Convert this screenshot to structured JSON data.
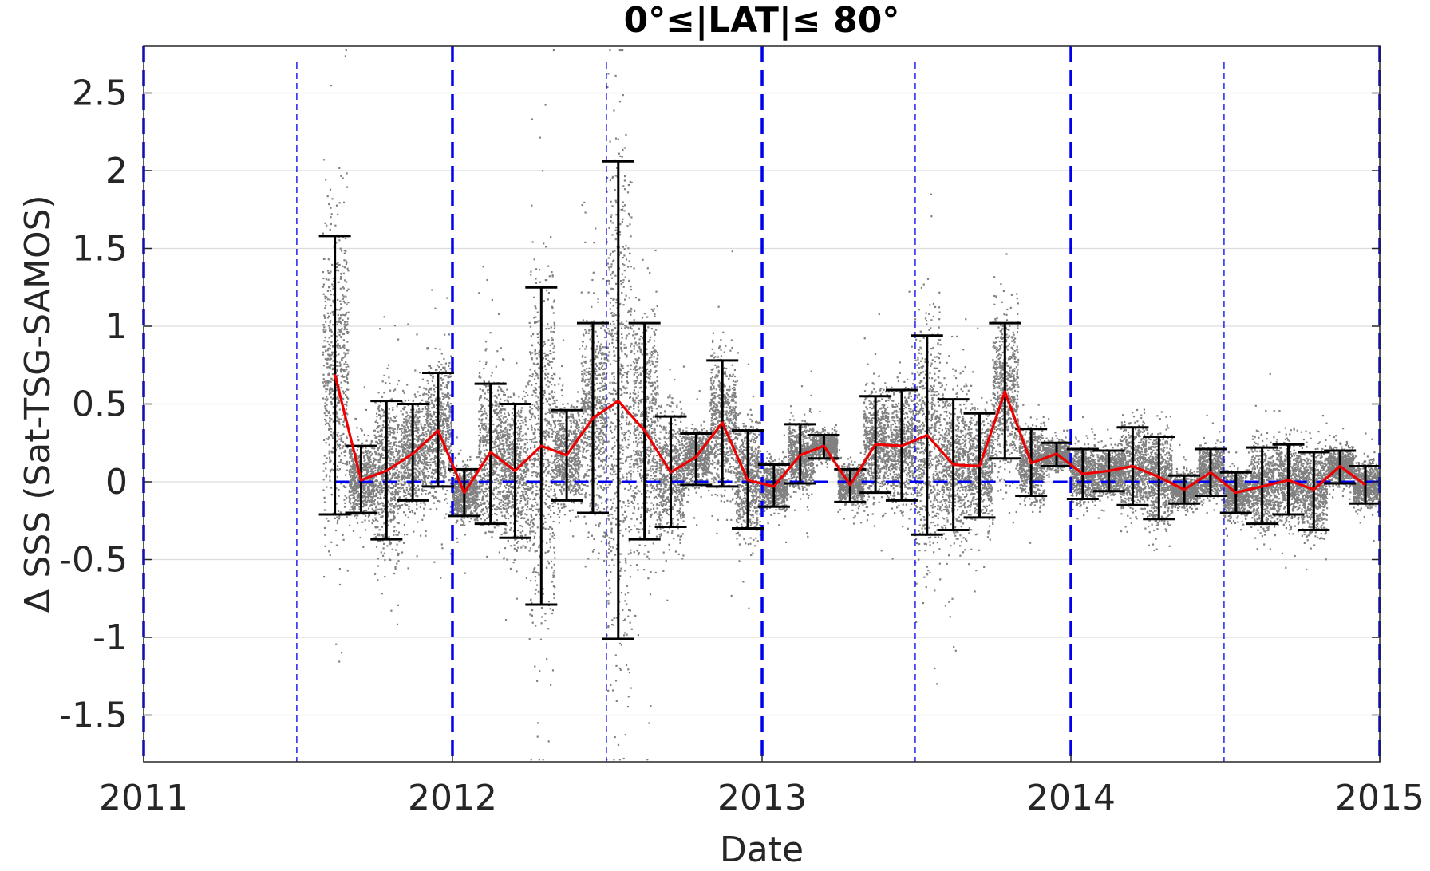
{
  "chart_data": {
    "type": "scatter",
    "title": "0°≤|LAT|≤ 80°",
    "xlabel": "Date",
    "ylabel": "Δ SSS (Sat-TSG-SAMOS)",
    "xlim": [
      "2011-01-01",
      "2015-01-01"
    ],
    "ylim": [
      -1.8,
      2.8
    ],
    "xticks": [
      "2011",
      "2012",
      "2013",
      "2014",
      "2015"
    ],
    "yticks": [
      "2.5",
      "2",
      "1.5",
      "1",
      "0.5",
      "0",
      "-0.5",
      "-1",
      "-1.5"
    ],
    "grid": true,
    "reference_line": {
      "y": 0,
      "style": "dashed",
      "color": "#0000ee"
    },
    "year_lines": {
      "dates": [
        "2011-01-01",
        "2012-01-01",
        "2013-01-01",
        "2014-01-01",
        "2015-01-01"
      ],
      "style": "dashed",
      "color": "#0000ee"
    },
    "half_year_lines": {
      "dates": [
        "2011-07-01",
        "2012-07-01",
        "2013-07-01",
        "2014-07-01"
      ],
      "style": "dashed",
      "color": "#0000ee"
    },
    "colors": {
      "points": "#808080",
      "mean_line": "#ee0000",
      "error_bars": "#000000",
      "reference": "#0000ee"
    },
    "monthly_mean": [
      {
        "date": "2011-08-15",
        "mean": 0.69,
        "low": -0.21,
        "high": 1.58
      },
      {
        "date": "2011-09-15",
        "mean": 0.01,
        "low": -0.2,
        "high": 0.23
      },
      {
        "date": "2011-10-15",
        "mean": 0.07,
        "low": -0.37,
        "high": 0.52
      },
      {
        "date": "2011-11-15",
        "mean": 0.18,
        "low": -0.12,
        "high": 0.5
      },
      {
        "date": "2011-12-15",
        "mean": 0.33,
        "low": -0.03,
        "high": 0.7
      },
      {
        "date": "2012-01-15",
        "mean": -0.07,
        "low": -0.22,
        "high": 0.08
      },
      {
        "date": "2012-02-15",
        "mean": 0.19,
        "low": -0.27,
        "high": 0.63
      },
      {
        "date": "2012-03-15",
        "mean": 0.07,
        "low": -0.36,
        "high": 0.5
      },
      {
        "date": "2012-04-15",
        "mean": 0.23,
        "low": -0.79,
        "high": 1.25
      },
      {
        "date": "2012-05-15",
        "mean": 0.17,
        "low": -0.12,
        "high": 0.46
      },
      {
        "date": "2012-06-15",
        "mean": 0.41,
        "low": -0.2,
        "high": 1.02
      },
      {
        "date": "2012-07-15",
        "mean": 0.52,
        "low": -1.01,
        "high": 2.06
      },
      {
        "date": "2012-08-15",
        "mean": 0.33,
        "low": -0.37,
        "high": 1.02
      },
      {
        "date": "2012-09-15",
        "mean": 0.06,
        "low": -0.29,
        "high": 0.42
      },
      {
        "date": "2012-10-15",
        "mean": 0.16,
        "low": -0.02,
        "high": 0.31
      },
      {
        "date": "2012-11-15",
        "mean": 0.38,
        "low": -0.03,
        "high": 0.78
      },
      {
        "date": "2012-12-15",
        "mean": 0.01,
        "low": -0.3,
        "high": 0.33
      },
      {
        "date": "2013-01-15",
        "mean": -0.03,
        "low": -0.16,
        "high": 0.11
      },
      {
        "date": "2013-02-15",
        "mean": 0.17,
        "low": -0.01,
        "high": 0.37
      },
      {
        "date": "2013-03-15",
        "mean": 0.23,
        "low": 0.15,
        "high": 0.3
      },
      {
        "date": "2013-04-15",
        "mean": -0.02,
        "low": -0.13,
        "high": 0.08
      },
      {
        "date": "2013-05-15",
        "mean": 0.24,
        "low": -0.07,
        "high": 0.55
      },
      {
        "date": "2013-06-15",
        "mean": 0.23,
        "low": -0.12,
        "high": 0.59
      },
      {
        "date": "2013-07-15",
        "mean": 0.3,
        "low": -0.34,
        "high": 0.94
      },
      {
        "date": "2013-08-15",
        "mean": 0.11,
        "low": -0.31,
        "high": 0.53
      },
      {
        "date": "2013-09-15",
        "mean": 0.1,
        "low": -0.23,
        "high": 0.44
      },
      {
        "date": "2013-10-15",
        "mean": 0.58,
        "low": 0.15,
        "high": 1.02
      },
      {
        "date": "2013-11-15",
        "mean": 0.12,
        "low": -0.09,
        "high": 0.34
      },
      {
        "date": "2013-12-15",
        "mean": 0.18,
        "low": 0.1,
        "high": 0.25
      },
      {
        "date": "2014-01-15",
        "mean": 0.05,
        "low": -0.11,
        "high": 0.21
      },
      {
        "date": "2014-02-15",
        "mean": 0.07,
        "low": -0.06,
        "high": 0.2
      },
      {
        "date": "2014-03-15",
        "mean": 0.1,
        "low": -0.15,
        "high": 0.35
      },
      {
        "date": "2014-04-15",
        "mean": 0.03,
        "low": -0.24,
        "high": 0.29
      },
      {
        "date": "2014-05-15",
        "mean": -0.05,
        "low": -0.14,
        "high": 0.04
      },
      {
        "date": "2014-06-15",
        "mean": 0.06,
        "low": -0.09,
        "high": 0.21
      },
      {
        "date": "2014-07-15",
        "mean": -0.07,
        "low": -0.2,
        "high": 0.06
      },
      {
        "date": "2014-08-15",
        "mean": -0.03,
        "low": -0.27,
        "high": 0.22
      },
      {
        "date": "2014-09-15",
        "mean": 0.01,
        "low": -0.21,
        "high": 0.24
      },
      {
        "date": "2014-10-15",
        "mean": -0.05,
        "low": -0.31,
        "high": 0.19
      },
      {
        "date": "2014-11-15",
        "mean": 0.1,
        "low": -0.01,
        "high": 0.2
      },
      {
        "date": "2014-12-15",
        "mean": -0.02,
        "low": -0.14,
        "high": 0.1
      }
    ]
  }
}
